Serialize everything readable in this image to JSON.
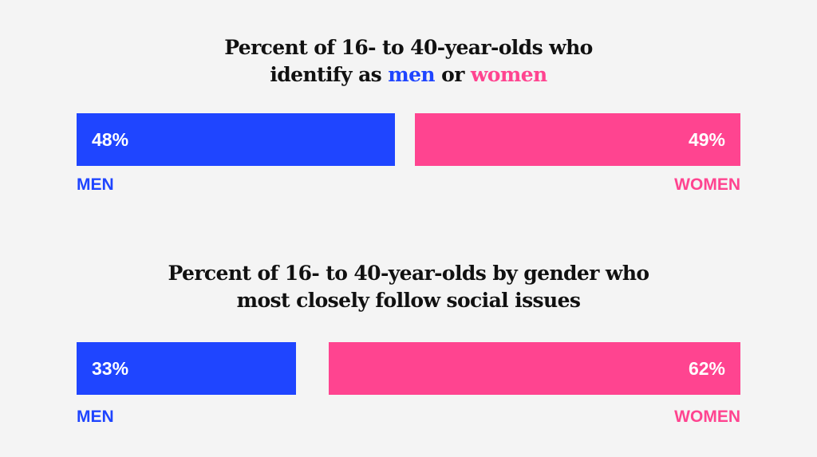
{
  "colors": {
    "men": "#1f45ff",
    "women": "#ff4490",
    "background": "#f4f4f4",
    "title": "#111111"
  },
  "chart_data": [
    {
      "type": "bar",
      "orientation": "horizontal-stacked",
      "title": {
        "line1": "Percent of 16- to 40-year-olds who",
        "line2_prefix": "identify as ",
        "line2_men": "men",
        "line2_middle": " or ",
        "line2_women": "women"
      },
      "scale_max": 100,
      "men": {
        "value": 48,
        "display": "48%",
        "legend": "MEN"
      },
      "women": {
        "value": 49,
        "display": "49%",
        "legend": "WOMEN"
      }
    },
    {
      "type": "bar",
      "orientation": "horizontal-stacked",
      "title": {
        "line1": "Percent of 16- to 40-year-olds by gender who",
        "line2": "most closely follow social issues"
      },
      "scale_max": 100,
      "men": {
        "value": 33,
        "display": "33%",
        "legend": "MEN"
      },
      "women": {
        "value": 62,
        "display": "62%",
        "legend": "WOMEN"
      }
    }
  ]
}
